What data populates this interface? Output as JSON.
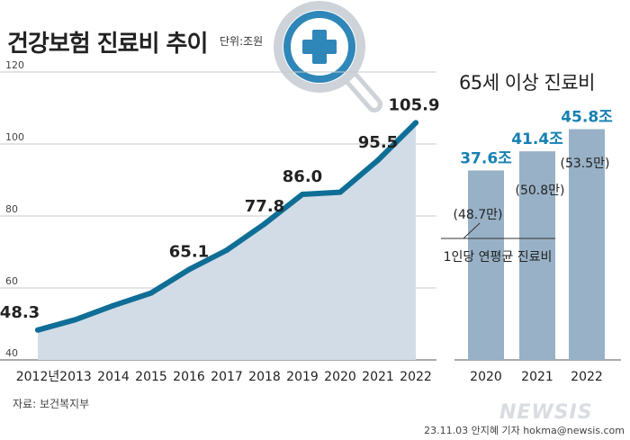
{
  "header": {
    "title": "건강보험 진료비 추이",
    "unit": "단위:조원",
    "right_title": "65세 이상 진료비"
  },
  "footer": {
    "source": "자료: 보건복지부",
    "credit": "23.11.03 안지혜 기자 hokma@newsis.com",
    "watermark": "NEWSIS"
  },
  "colors": {
    "line": "#0f6e96",
    "area": "#d2dce6",
    "bar": "#98b1c6",
    "bar_label": "#1780b2",
    "badge_ring": "#2f86b8",
    "magnifier": "#cdd3d8",
    "grid": "#c9c9c9",
    "badge_cross_icon": "plus"
  },
  "chart_data": [
    {
      "type": "area",
      "title": "건강보험 진료비 추이",
      "unit": "조원",
      "categories": [
        "2012년",
        "2013",
        "2014",
        "2015",
        "2016",
        "2017",
        "2018",
        "2019",
        "2020",
        "2021",
        "2022"
      ],
      "values": [
        48.3,
        51.2,
        55.1,
        58.6,
        65.1,
        70.5,
        77.8,
        86.0,
        86.6,
        95.5,
        105.9
      ],
      "data_labels": {
        "0": "48.3",
        "4": "65.1",
        "6": "77.8",
        "7": "86.0",
        "9": "95.5",
        "10": "105.9"
      },
      "yticks": [
        "40",
        "60",
        "80",
        "100",
        "120"
      ],
      "ylim": [
        40,
        120
      ],
      "grid": true
    },
    {
      "type": "bar",
      "title": "65세 이상 진료비",
      "categories": [
        "2020",
        "2021",
        "2022"
      ],
      "values": [
        37.6,
        41.4,
        45.8
      ],
      "value_labels": [
        "37.6조",
        "41.4조",
        "45.8조"
      ],
      "per_capita_labels": [
        "(48.7만)",
        "(50.8만)",
        "(53.5만)"
      ],
      "per_capita_values": [
        48.7,
        50.8,
        53.5
      ],
      "per_capita_unit": "만",
      "annotation": "1인당 연평균 진료비"
    }
  ]
}
